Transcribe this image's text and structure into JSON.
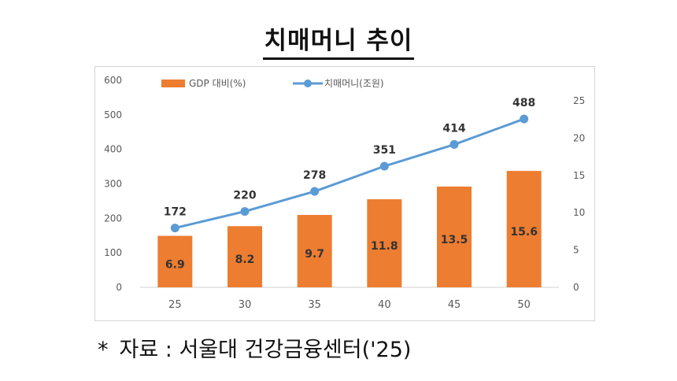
{
  "title": "치매머니 추이",
  "source": {
    "marker": "*",
    "text": "자료 : 서울대 건강금융센터('25)"
  },
  "chart_data": {
    "type": "bar",
    "categories": [
      "25",
      "30",
      "35",
      "40",
      "45",
      "50"
    ],
    "series": [
      {
        "name": "GDP 대비(%)",
        "type": "bar",
        "axis": "right",
        "values": [
          6.9,
          8.2,
          9.7,
          11.8,
          13.5,
          15.6
        ],
        "labels": [
          "6.9",
          "8.2",
          "9.7",
          "11.8",
          "13.5",
          "15.6"
        ],
        "color": "#ED7D31"
      },
      {
        "name": "치매머니(조원)",
        "type": "line",
        "axis": "left",
        "values": [
          172,
          220,
          278,
          351,
          414,
          488
        ],
        "labels": [
          "172",
          "220",
          "278",
          "351",
          "414",
          "488"
        ],
        "color": "#5B9BD5"
      }
    ],
    "left_axis": {
      "ylim": [
        0,
        600
      ],
      "ticks": [
        "0",
        "100",
        "200",
        "300",
        "400",
        "500",
        "600"
      ]
    },
    "right_axis": {
      "ylim": [
        0,
        25
      ],
      "ticks": [
        "0",
        "5",
        "10",
        "15",
        "20",
        "25"
      ]
    },
    "grid": false,
    "legend": "top-left"
  }
}
